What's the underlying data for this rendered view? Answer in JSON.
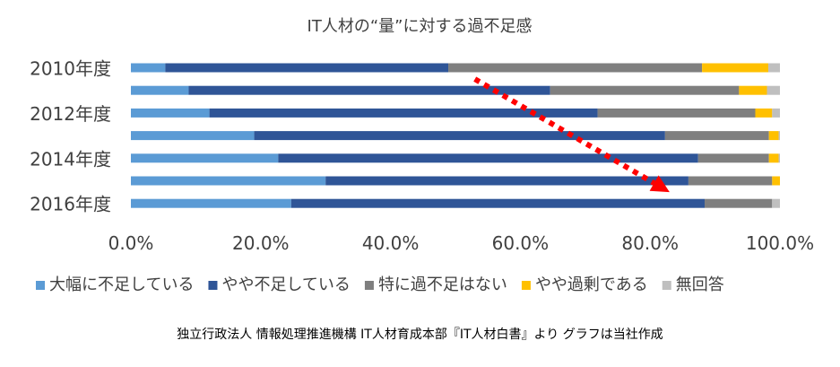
{
  "chart_data": {
    "type": "bar",
    "orientation": "horizontal",
    "stacked": "percent",
    "title": "IT人材の“量”に対する過不足感",
    "categories": [
      "2010年度",
      "",
      "2012年度",
      "",
      "2014年度",
      "",
      "2016年度"
    ],
    "series": [
      {
        "name": "大幅に不足している",
        "color": "#5B9BD5",
        "values": [
          5.3,
          8.9,
          12.1,
          19.0,
          22.7,
          30.0,
          24.7
        ]
      },
      {
        "name": "やや不足している",
        "color": "#2F5597",
        "values": [
          43.6,
          55.7,
          59.8,
          63.3,
          64.7,
          55.9,
          63.7
        ]
      },
      {
        "name": "特に過不足はない",
        "color": "#7F7F7F",
        "values": [
          39.1,
          29.1,
          24.3,
          16.0,
          10.9,
          12.9,
          10.4
        ]
      },
      {
        "name": "やや過剰である",
        "color": "#FFC000",
        "values": [
          10.2,
          4.3,
          2.6,
          1.5,
          1.5,
          1.2,
          0.0
        ]
      },
      {
        "name": "無回答",
        "color": "#BFBFBF",
        "values": [
          1.8,
          2.0,
          1.2,
          0.2,
          0.2,
          0.0,
          1.2
        ]
      }
    ],
    "xlim": [
      0,
      100
    ],
    "xticks": [
      "0.0%",
      "20.0%",
      "40.0%",
      "60.0%",
      "80.0%",
      "100.0%"
    ],
    "grid": false,
    "legend": "bottom",
    "annotation": {
      "type": "dotted-arrow",
      "color": "#FF0000",
      "from": [
        53,
        0.5
      ],
      "to": [
        83,
        5.5
      ]
    }
  },
  "source_note": "独立行政法人 情報処理推進機構 IT人材育成本部『IT人材白書』より グラフは当社作成"
}
